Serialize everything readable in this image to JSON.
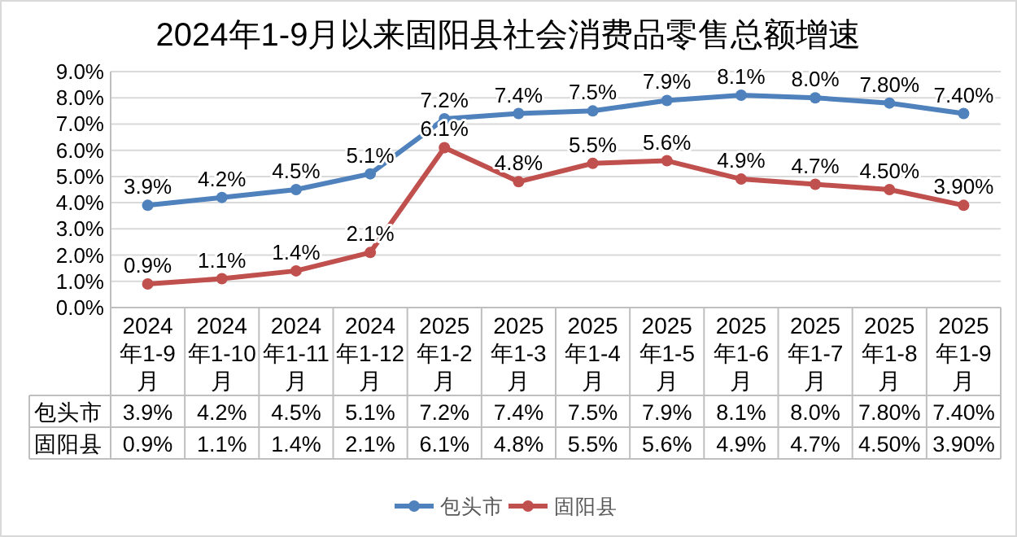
{
  "chart_data": {
    "type": "line",
    "title": "2024年1-9月以来固阳县社会消费品零售总额增速",
    "categories": [
      "2024年1-9月",
      "2024年1-10月",
      "2024年1-11月",
      "2024年1-12月",
      "2025年1-2月",
      "2025年1-3月",
      "2025年1-4月",
      "2025年1-5月",
      "2025年1-6月",
      "2025年1-7月",
      "2025年1-8月",
      "2025年1-9月"
    ],
    "series": [
      {
        "name": "包头市",
        "color": "#4f81bd",
        "values": [
          3.9,
          4.2,
          4.5,
          5.1,
          7.2,
          7.4,
          7.5,
          7.9,
          8.1,
          8.0,
          7.8,
          7.4
        ],
        "value_labels": [
          "3.9%",
          "4.2%",
          "4.5%",
          "5.1%",
          "7.2%",
          "7.4%",
          "7.5%",
          "7.9%",
          "8.1%",
          "8.0%",
          "7.80%",
          "7.40%"
        ]
      },
      {
        "name": "固阳县",
        "color": "#c0504d",
        "values": [
          0.9,
          1.1,
          1.4,
          2.1,
          6.1,
          4.8,
          5.5,
          5.6,
          4.9,
          4.7,
          4.5,
          3.9
        ],
        "value_labels": [
          "0.9%",
          "1.1%",
          "1.4%",
          "2.1%",
          "6.1%",
          "4.8%",
          "5.5%",
          "5.6%",
          "4.9%",
          "4.7%",
          "4.50%",
          "3.90%"
        ]
      }
    ],
    "ylim": [
      0,
      9
    ],
    "yticks": [
      {
        "value": 0,
        "label": "0.0%"
      },
      {
        "value": 1,
        "label": "1.0%"
      },
      {
        "value": 2,
        "label": "2.0%"
      },
      {
        "value": 3,
        "label": "3.0%"
      },
      {
        "value": 4,
        "label": "4.0%"
      },
      {
        "value": 5,
        "label": "5.0%"
      },
      {
        "value": 6,
        "label": "6.0%"
      },
      {
        "value": 7,
        "label": "7.0%"
      },
      {
        "value": 8,
        "label": "8.0%"
      },
      {
        "value": 9,
        "label": "9.0%"
      }
    ],
    "grid": "y",
    "legend": "bottom",
    "marker": "circle",
    "line_style": "solid"
  }
}
